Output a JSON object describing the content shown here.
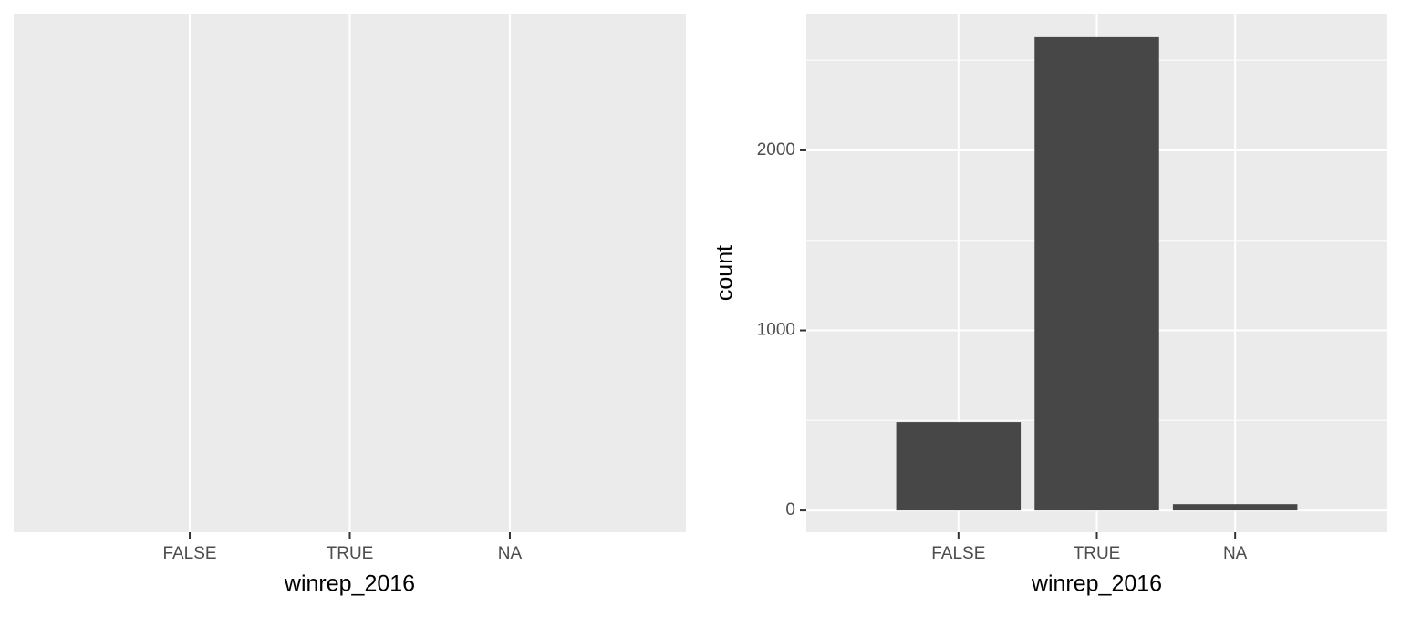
{
  "chart_data": [
    {
      "type": "blank",
      "categories": [
        "FALSE",
        "TRUE",
        "NA"
      ],
      "x_label": "winrep_2016",
      "grid": true
    },
    {
      "type": "bar",
      "categories": [
        "FALSE",
        "TRUE",
        "NA"
      ],
      "values": [
        491,
        2628,
        35
      ],
      "color": "#474747",
      "x_label": "winrep_2016",
      "y_label": "count",
      "ylim": [
        -121,
        2759
      ],
      "yticks": [
        0,
        1000,
        2000
      ],
      "minor_yticks": [
        500,
        1500,
        2500
      ],
      "grid": true
    }
  ]
}
